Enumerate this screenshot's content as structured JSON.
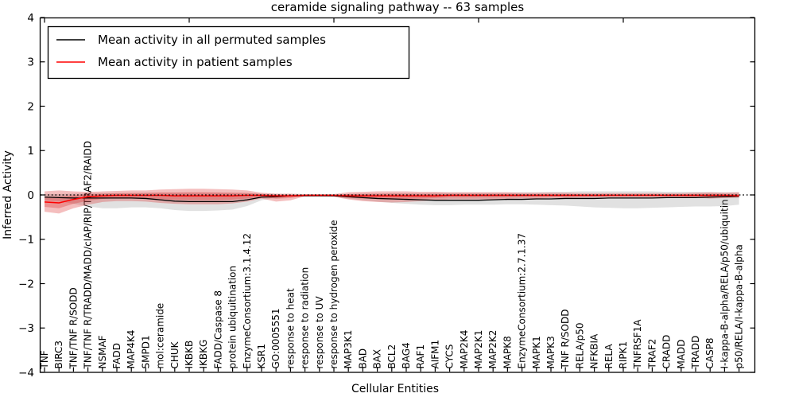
{
  "figure": {
    "title": "ceramide signaling pathway -- 63 samples",
    "xlabel": "Cellular Entities",
    "ylabel": "Inferred Activity"
  },
  "chart_data": {
    "type": "line",
    "title": "ceramide signaling pathway -- 63 samples",
    "xlabel": "Cellular Entities",
    "ylabel": "Inferred Activity",
    "ylim": [
      -4,
      4
    ],
    "ytick_values": [
      -4,
      -3,
      -2,
      -1,
      0,
      1,
      2,
      3,
      4
    ],
    "ytick_labels": [
      "−4",
      "−3",
      "−2",
      "−1",
      "0",
      "1",
      "2",
      "3",
      "4"
    ],
    "top_tick_indices": [
      0,
      10,
      20,
      30,
      40
    ],
    "grid": false,
    "zero_reference_line": true,
    "legend_position": "upper left",
    "categories": [
      "TNF",
      "BIRC3",
      "TNF/TNF R/SODD",
      "TNF/TNF R/TRADD/MADD/cIAP/RIP/TRAF2/RAIDD",
      "NSMAF",
      "FADD",
      "MAP4K4",
      "SMPD1",
      "mol:ceramide",
      "CHUK",
      "IKBKB",
      "IKBKG",
      "FADD/Caspase 8",
      "protein ubiquitination",
      "EnzymeConsortium:3.1.4.12",
      "KSR1",
      "GO:0005551",
      "response to heat",
      "response to radiation",
      "response to UV",
      "response to hydrogen peroxide",
      "MAP3K1",
      "BAD",
      "BAX",
      "BCL2",
      "BAG4",
      "RAF1",
      "AIFM1",
      "CYCS",
      "MAP2K4",
      "MAP2K1",
      "MAP2K2",
      "MAPK8",
      "EnzymeConsortium:2.7.1.37",
      "MAPK1",
      "MAPK3",
      "TNF R/SODD",
      "RELA/p50",
      "NFKBIA",
      "RELA",
      "RIPK1",
      "TNFRSF1A",
      "TRAF2",
      "CRADD",
      "MADD",
      "TRADD",
      "CASP8",
      "I-kappa-B-alpha/RELA/p50/ubiquitin",
      "p50/RELA/I-kappa-B-alpha"
    ],
    "series": [
      {
        "name": "Mean activity in all permuted samples",
        "color": "#000000",
        "band_color": "rgba(120,120,120,0.22)",
        "values": [
          -0.05,
          -0.06,
          -0.07,
          -0.07,
          -0.07,
          -0.07,
          -0.07,
          -0.08,
          -0.11,
          -0.14,
          -0.15,
          -0.15,
          -0.15,
          -0.15,
          -0.11,
          -0.05,
          -0.04,
          -0.02,
          -0.02,
          -0.02,
          -0.02,
          -0.04,
          -0.06,
          -0.08,
          -0.09,
          -0.1,
          -0.11,
          -0.12,
          -0.12,
          -0.12,
          -0.12,
          -0.11,
          -0.1,
          -0.1,
          -0.09,
          -0.09,
          -0.08,
          -0.08,
          -0.08,
          -0.07,
          -0.07,
          -0.07,
          -0.07,
          -0.06,
          -0.06,
          -0.06,
          -0.05,
          -0.04,
          -0.03
        ],
        "band_upper": [
          0.02,
          0.02,
          0.03,
          0.04,
          0.04,
          0.04,
          0.04,
          0.05,
          0.05,
          0.05,
          0.05,
          0.05,
          0.05,
          0.05,
          0.04,
          0.03,
          0.02,
          0.01,
          0.01,
          0.01,
          0.01,
          0.02,
          0.03,
          0.03,
          0.04,
          0.04,
          0.04,
          0.05,
          0.05,
          0.05,
          0.05,
          0.05,
          0.05,
          0.06,
          0.06,
          0.07,
          0.07,
          0.08,
          0.08,
          0.08,
          0.08,
          0.08,
          0.08,
          0.07,
          0.07,
          0.07,
          0.06,
          0.06,
          0.06
        ],
        "band_lower": [
          -0.12,
          -0.14,
          -0.2,
          -0.26,
          -0.3,
          -0.3,
          -0.28,
          -0.28,
          -0.3,
          -0.34,
          -0.36,
          -0.36,
          -0.35,
          -0.33,
          -0.25,
          -0.12,
          -0.06,
          -0.04,
          -0.03,
          -0.03,
          -0.04,
          -0.08,
          -0.12,
          -0.15,
          -0.18,
          -0.2,
          -0.22,
          -0.23,
          -0.23,
          -0.22,
          -0.22,
          -0.22,
          -0.21,
          -0.21,
          -0.22,
          -0.23,
          -0.24,
          -0.26,
          -0.28,
          -0.29,
          -0.3,
          -0.3,
          -0.29,
          -0.28,
          -0.27,
          -0.26,
          -0.26,
          -0.25,
          -0.22
        ]
      },
      {
        "name": "Mean activity in patient samples",
        "color": "#ff0000",
        "band_color": "rgba(220,40,40,0.30)",
        "values": [
          -0.16,
          -0.18,
          -0.1,
          -0.04,
          -0.02,
          -0.01,
          -0.01,
          -0.01,
          -0.01,
          -0.02,
          -0.02,
          -0.02,
          -0.02,
          -0.02,
          -0.01,
          -0.01,
          -0.02,
          -0.02,
          -0.01,
          -0.01,
          -0.01,
          -0.02,
          -0.02,
          -0.02,
          -0.02,
          -0.02,
          -0.02,
          -0.02,
          -0.01,
          -0.01,
          -0.01,
          -0.01,
          -0.01,
          -0.01,
          -0.01,
          -0.01,
          -0.01,
          -0.01,
          -0.01,
          -0.01,
          -0.01,
          -0.01,
          -0.01,
          -0.01,
          -0.01,
          -0.01,
          -0.01,
          -0.01,
          -0.02
        ],
        "band_upper": [
          0.08,
          0.1,
          0.08,
          0.07,
          0.08,
          0.09,
          0.1,
          0.1,
          0.12,
          0.13,
          0.14,
          0.14,
          0.13,
          0.12,
          0.1,
          0.05,
          0.03,
          0.03,
          0.02,
          0.02,
          0.02,
          0.06,
          0.07,
          0.08,
          0.08,
          0.08,
          0.07,
          0.07,
          0.06,
          0.06,
          0.06,
          0.06,
          0.06,
          0.05,
          0.05,
          0.05,
          0.05,
          0.04,
          0.04,
          0.04,
          0.04,
          0.04,
          0.04,
          0.04,
          0.04,
          0.05,
          0.06,
          0.05,
          0.06
        ],
        "band_lower": [
          -0.38,
          -0.42,
          -0.3,
          -0.22,
          -0.16,
          -0.14,
          -0.14,
          -0.15,
          -0.18,
          -0.2,
          -0.21,
          -0.21,
          -0.21,
          -0.19,
          -0.15,
          -0.08,
          -0.15,
          -0.12,
          -0.03,
          -0.03,
          -0.04,
          -0.1,
          -0.14,
          -0.16,
          -0.17,
          -0.16,
          -0.14,
          -0.12,
          -0.1,
          -0.1,
          -0.1,
          -0.1,
          -0.09,
          -0.08,
          -0.08,
          -0.07,
          -0.07,
          -0.06,
          -0.06,
          -0.05,
          -0.05,
          -0.05,
          -0.05,
          -0.05,
          -0.05,
          -0.06,
          -0.08,
          -0.07,
          -0.06
        ]
      }
    ],
    "colors": {
      "frame": "#000000",
      "zero_line": "#000000",
      "permuted_line": "#000000",
      "patient_line": "#ff0000"
    }
  }
}
